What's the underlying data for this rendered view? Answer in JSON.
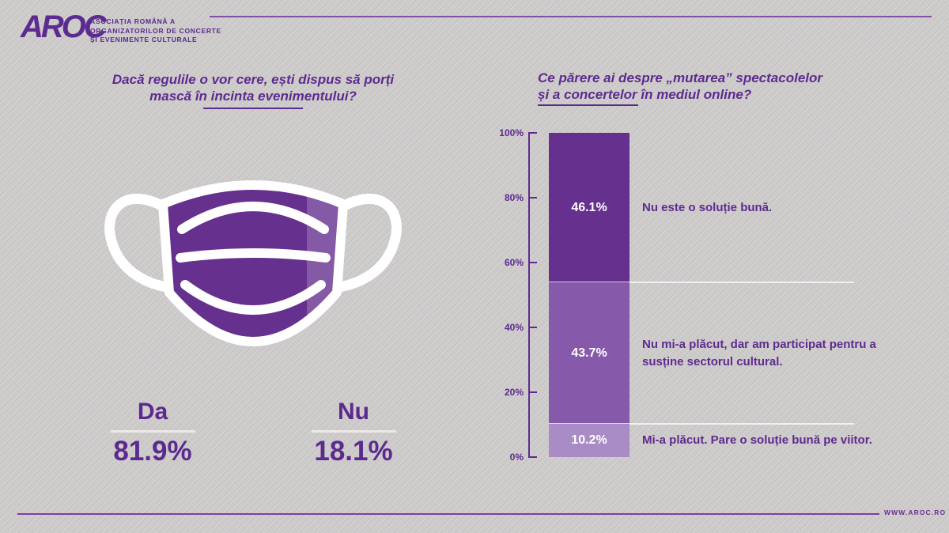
{
  "logo": {
    "text": "AROC",
    "tagline": [
      "ASOCIAȚIA ROMÂNĂ A",
      "ORGANIZATORILOR DE CONCERTE",
      "ȘI EVENIMENTE CULTURALE"
    ]
  },
  "mask_panel": {
    "question_line1": "Dacă regulile o vor cere, ești dispus să porți",
    "question_line2": "mască în incinta evenimentului?",
    "icon": "face-mask-icon",
    "answers": {
      "yes_label": "Da",
      "yes_value": "81.9%",
      "no_label": "Nu",
      "no_value": "18.1%"
    }
  },
  "online_panel": {
    "question_line1": "Ce părere ai despre „mutarea” spectacolelor",
    "question_line2": "și a concertelor în mediul online?"
  },
  "chart_data": {
    "type": "bar",
    "stacked": true,
    "title": "Ce părere ai despre „mutarea” spectacolelor și a concertelor în mediul online?",
    "ylim": [
      0,
      100
    ],
    "y_ticks": [
      "100%",
      "80%",
      "60%",
      "40%",
      "20%",
      "0%"
    ],
    "grid": false,
    "legend_position": "right-of-bar",
    "series": [
      {
        "name": "Nu este o soluție bună.",
        "value": 46.1,
        "label": "46.1%",
        "color": "#66308f"
      },
      {
        "name": "Nu mi-a plăcut, dar am participat pentru a susține sectorul cultural.",
        "value": 43.7,
        "label": "43.7%",
        "color": "#8659ab"
      },
      {
        "name": "Mi-a plăcut. Pare o soluție bună pe viitor.",
        "value": 10.2,
        "label": "10.2%",
        "color": "#a98bc5"
      }
    ]
  },
  "colors": {
    "accent_purple": "#5d2b8f",
    "bar_dark": "#66308f",
    "bar_mid": "#8659ab",
    "bar_light": "#a98bc5",
    "background": "#cfcccc",
    "label_white": "#ffffff"
  },
  "footer": {
    "website": "WWW.AROC.RO"
  }
}
